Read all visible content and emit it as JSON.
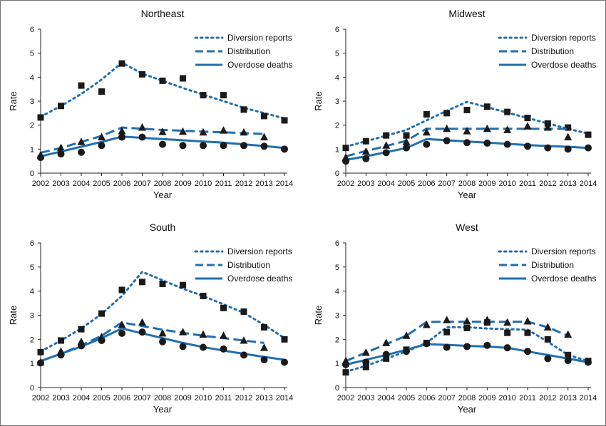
{
  "chart_data": [
    {
      "type": "line",
      "title": "Northeast",
      "xlabel": "Year",
      "ylabel": "Rate",
      "x": [
        2002,
        2003,
        2004,
        2005,
        2006,
        2007,
        2008,
        2009,
        2010,
        2011,
        2012,
        2013,
        2014
      ],
      "ylim": [
        0,
        6
      ],
      "yticks": [
        0,
        1,
        2,
        3,
        4,
        5,
        6
      ],
      "legend_position": "top-right",
      "series": [
        {
          "name": "Diversion reports",
          "style": "dotted",
          "marker": "square",
          "fit": [
            2.35,
            2.8,
            3.3,
            3.9,
            4.6,
            4.15,
            3.85,
            3.55,
            3.27,
            3.0,
            2.72,
            2.5,
            2.28
          ],
          "observed": [
            2.32,
            2.8,
            3.65,
            3.4,
            4.57,
            4.12,
            3.85,
            3.95,
            3.25,
            3.25,
            2.65,
            2.38,
            2.2
          ]
        },
        {
          "name": "Distribution",
          "style": "dashed",
          "marker": "triangle",
          "fit": [
            0.85,
            1.05,
            1.3,
            1.55,
            1.9,
            1.85,
            1.8,
            1.77,
            1.73,
            1.7,
            1.67,
            1.63,
            null
          ],
          "observed": [
            0.75,
            1.05,
            1.3,
            1.5,
            1.75,
            1.9,
            1.72,
            1.73,
            1.7,
            1.78,
            1.7,
            1.5,
            null
          ]
        },
        {
          "name": "Overdose deaths",
          "style": "solid",
          "marker": "circle",
          "fit": [
            0.7,
            0.9,
            1.1,
            1.3,
            1.52,
            1.47,
            1.42,
            1.37,
            1.32,
            1.27,
            1.2,
            1.13,
            1.05
          ],
          "observed": [
            0.65,
            0.8,
            0.87,
            1.15,
            1.5,
            1.5,
            1.2,
            1.15,
            1.15,
            1.15,
            1.15,
            1.12,
            1.0
          ]
        }
      ]
    },
    {
      "type": "line",
      "title": "Midwest",
      "xlabel": "Year",
      "ylabel": "Rate",
      "x": [
        2002,
        2003,
        2004,
        2005,
        2006,
        2007,
        2008,
        2009,
        2010,
        2011,
        2012,
        2013,
        2014
      ],
      "ylim": [
        0,
        6
      ],
      "yticks": [
        0,
        1,
        2,
        3,
        4,
        5,
        6
      ],
      "legend_position": "top-right",
      "series": [
        {
          "name": "Diversion reports",
          "style": "dotted",
          "marker": "square",
          "fit": [
            1.1,
            1.33,
            1.56,
            1.8,
            2.2,
            2.6,
            2.97,
            2.75,
            2.52,
            2.3,
            2.07,
            1.85,
            1.65
          ],
          "observed": [
            1.05,
            1.33,
            1.57,
            1.57,
            2.45,
            2.5,
            2.63,
            2.77,
            2.55,
            2.3,
            2.07,
            1.9,
            1.6
          ]
        },
        {
          "name": "Distribution",
          "style": "dashed",
          "marker": "triangle",
          "fit": [
            0.7,
            0.92,
            1.13,
            1.35,
            1.85,
            1.85,
            1.85,
            1.85,
            1.85,
            1.85,
            1.85,
            1.85,
            null
          ],
          "observed": [
            0.65,
            0.9,
            1.15,
            1.3,
            1.7,
            1.85,
            1.75,
            1.85,
            1.8,
            1.95,
            1.9,
            1.5,
            null
          ]
        },
        {
          "name": "Overdose deaths",
          "style": "solid",
          "marker": "circle",
          "fit": [
            0.55,
            0.7,
            0.87,
            1.05,
            1.42,
            1.37,
            1.32,
            1.27,
            1.22,
            1.17,
            1.13,
            1.1,
            1.05
          ],
          "observed": [
            0.5,
            0.6,
            0.85,
            1.05,
            1.2,
            1.35,
            1.27,
            1.25,
            1.2,
            1.12,
            1.05,
            1.0,
            1.05
          ]
        }
      ]
    },
    {
      "type": "line",
      "title": "South",
      "xlabel": "Year",
      "ylabel": "Rate",
      "x": [
        2002,
        2003,
        2004,
        2005,
        2006,
        2007,
        2008,
        2009,
        2010,
        2011,
        2012,
        2013,
        2014
      ],
      "ylim": [
        0,
        6
      ],
      "yticks": [
        0,
        1,
        2,
        3,
        4,
        5,
        6
      ],
      "legend_position": "top-right",
      "series": [
        {
          "name": "Diversion reports",
          "style": "dotted",
          "marker": "square",
          "fit": [
            1.5,
            1.95,
            2.45,
            3.05,
            3.8,
            4.8,
            4.45,
            4.1,
            3.8,
            3.45,
            3.1,
            2.6,
            2.05
          ],
          "observed": [
            1.47,
            1.95,
            2.42,
            3.07,
            4.05,
            4.38,
            4.3,
            4.25,
            3.8,
            3.3,
            3.15,
            2.5,
            2.0
          ]
        },
        {
          "name": "Distribution",
          "style": "dashed",
          "marker": "triangle",
          "fit": [
            1.1,
            1.4,
            1.75,
            2.15,
            2.7,
            2.55,
            2.4,
            2.27,
            2.15,
            2.05,
            1.95,
            1.85,
            null
          ],
          "observed": [
            1.05,
            1.5,
            1.9,
            2.1,
            2.6,
            2.7,
            2.25,
            2.3,
            2.2,
            2.15,
            1.95,
            1.65,
            null
          ]
        },
        {
          "name": "Overdose deaths",
          "style": "solid",
          "marker": "circle",
          "fit": [
            1.1,
            1.4,
            1.7,
            2.05,
            2.45,
            2.25,
            2.05,
            1.85,
            1.68,
            1.53,
            1.4,
            1.27,
            1.15
          ],
          "observed": [
            1.02,
            1.35,
            1.73,
            1.95,
            2.25,
            2.3,
            1.9,
            1.7,
            1.67,
            1.6,
            1.35,
            1.15,
            1.05
          ]
        }
      ]
    },
    {
      "type": "line",
      "title": "West",
      "xlabel": "Year",
      "ylabel": "Rate",
      "x": [
        2002,
        2003,
        2004,
        2005,
        2006,
        2007,
        2008,
        2009,
        2010,
        2011,
        2012,
        2013,
        2014
      ],
      "ylim": [
        0,
        6
      ],
      "yticks": [
        0,
        1,
        2,
        3,
        4,
        5,
        6
      ],
      "legend_position": "top-right",
      "series": [
        {
          "name": "Diversion reports",
          "style": "dotted",
          "marker": "square",
          "fit": [
            0.65,
            0.9,
            1.2,
            1.5,
            1.85,
            2.5,
            2.5,
            2.45,
            2.42,
            2.4,
            1.9,
            1.35,
            1.1
          ],
          "observed": [
            0.63,
            0.85,
            1.2,
            1.57,
            1.85,
            2.3,
            2.47,
            2.7,
            2.27,
            2.27,
            2.0,
            1.35,
            1.1
          ]
        },
        {
          "name": "Distribution",
          "style": "dashed",
          "marker": "triangle",
          "fit": [
            1.1,
            1.45,
            1.8,
            2.15,
            2.72,
            2.73,
            2.73,
            2.73,
            2.73,
            2.73,
            2.5,
            2.15,
            null
          ],
          "observed": [
            1.1,
            1.45,
            1.85,
            2.15,
            2.6,
            2.8,
            2.75,
            2.8,
            2.7,
            2.75,
            2.5,
            2.2,
            null
          ]
        },
        {
          "name": "Overdose deaths",
          "style": "solid",
          "marker": "circle",
          "fit": [
            0.95,
            1.15,
            1.35,
            1.57,
            1.8,
            1.77,
            1.73,
            1.7,
            1.65,
            1.5,
            1.35,
            1.2,
            1.05
          ],
          "observed": [
            0.95,
            1.05,
            1.37,
            1.5,
            1.82,
            1.67,
            1.7,
            1.75,
            1.65,
            1.5,
            1.2,
            1.12,
            1.05
          ]
        }
      ]
    }
  ],
  "colors": {
    "line": "#1f6fb2",
    "marker": "#1a1a1a",
    "text": "#111111"
  }
}
